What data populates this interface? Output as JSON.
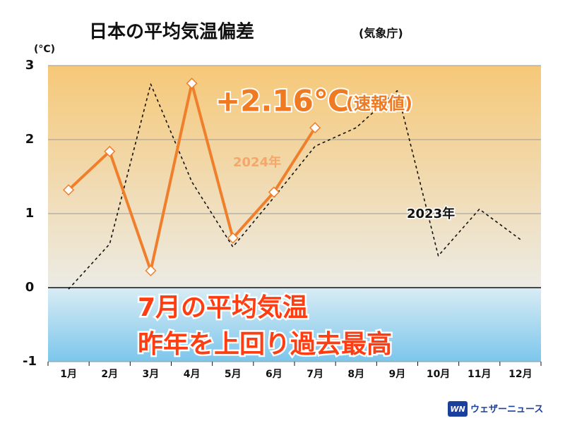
{
  "chart_data": {
    "type": "line",
    "title": "日本の平均気温偏差",
    "subtitle": "(気象庁)",
    "y_axis_label": "(°C)",
    "annotations": {
      "value": "+2.16℃",
      "note": "(速報値)",
      "headline": [
        "7月の平均気温",
        "昨年を上回り過去最高"
      ]
    },
    "categories": [
      "1月",
      "2月",
      "3月",
      "4月",
      "5月",
      "6月",
      "7月",
      "8月",
      "9月",
      "10月",
      "11月",
      "12月"
    ],
    "series": [
      {
        "name": "2023年",
        "color": "#111111",
        "dashed": true,
        "values": [
          -0.02,
          0.59,
          2.75,
          1.43,
          0.55,
          1.22,
          1.91,
          2.16,
          2.66,
          0.43,
          1.06,
          0.65
        ]
      },
      {
        "name": "2024年",
        "color": "#f07f2c",
        "marker": "diamond",
        "values": [
          1.32,
          1.84,
          0.23,
          2.76,
          0.67,
          1.29,
          2.16,
          null,
          null,
          null,
          null,
          null
        ]
      }
    ],
    "ylim": [
      -1,
      3
    ],
    "yticks": [
      -1,
      0,
      1,
      2,
      3
    ],
    "grid": true,
    "logo": {
      "mark": "WN",
      "text": "ウェザーニュース"
    }
  }
}
